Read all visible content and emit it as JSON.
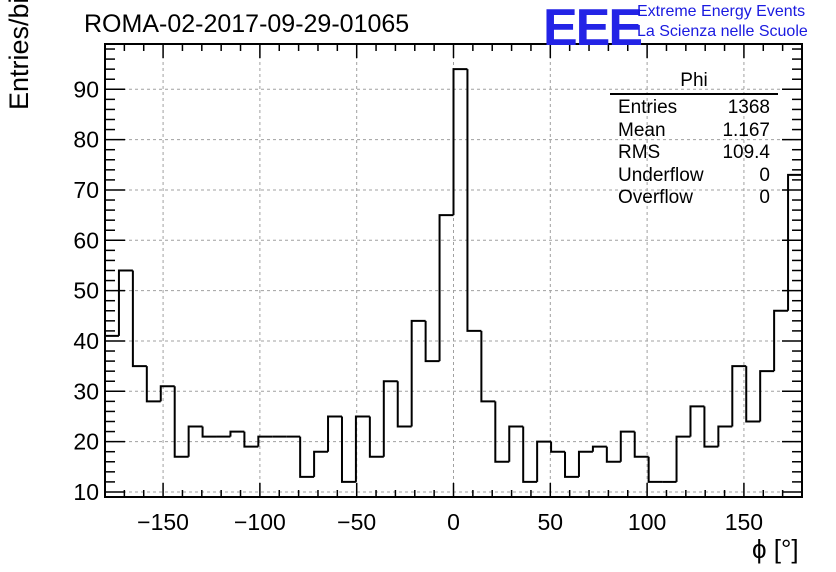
{
  "title": "ROMA-02-2017-09-29-01065",
  "logo": {
    "mark": "EEE",
    "line1": "Extreme Energy Events",
    "line2": "La Scienza nelle Scuole"
  },
  "stats_box": {
    "name": "Phi",
    "rows": [
      {
        "label": "Entries",
        "value": "1368"
      },
      {
        "label": "Mean",
        "value": "1.167"
      },
      {
        "label": "RMS",
        "value": "109.4"
      },
      {
        "label": "Underflow",
        "value": "0"
      },
      {
        "label": "Overflow",
        "value": "0"
      }
    ]
  },
  "chart_data": {
    "type": "bar",
    "style": "step-histogram",
    "title": "ROMA-02-2017-09-29-01065",
    "xlabel": "ϕ [°]",
    "ylabel": "Entries/bin",
    "xlim": [
      -180,
      180
    ],
    "ylim": [
      9,
      99
    ],
    "bin_width": 7.2,
    "grid": true,
    "x_ticks": [
      -150,
      -100,
      -50,
      0,
      50,
      100,
      150
    ],
    "x_tick_labels": [
      "−150",
      "−100",
      "−50",
      "0",
      "50",
      "100",
      "150"
    ],
    "y_ticks": [
      10,
      20,
      30,
      40,
      50,
      60,
      70,
      80,
      90
    ],
    "y_tick_labels": [
      "10",
      "20",
      "30",
      "40",
      "50",
      "60",
      "70",
      "80",
      "90"
    ],
    "values": [
      41,
      54,
      35,
      28,
      31,
      17,
      23,
      21,
      21,
      22,
      19,
      21,
      21,
      21,
      13,
      18,
      25,
      12,
      25,
      17,
      32,
      23,
      44,
      36,
      65,
      94,
      42,
      28,
      16,
      23,
      12,
      20,
      18,
      13,
      18,
      19,
      16,
      22,
      17,
      12,
      12,
      21,
      27,
      19,
      23,
      35,
      24,
      34,
      46,
      73
    ],
    "line_color": "#000000",
    "grid_color": "#a0a0a0"
  }
}
